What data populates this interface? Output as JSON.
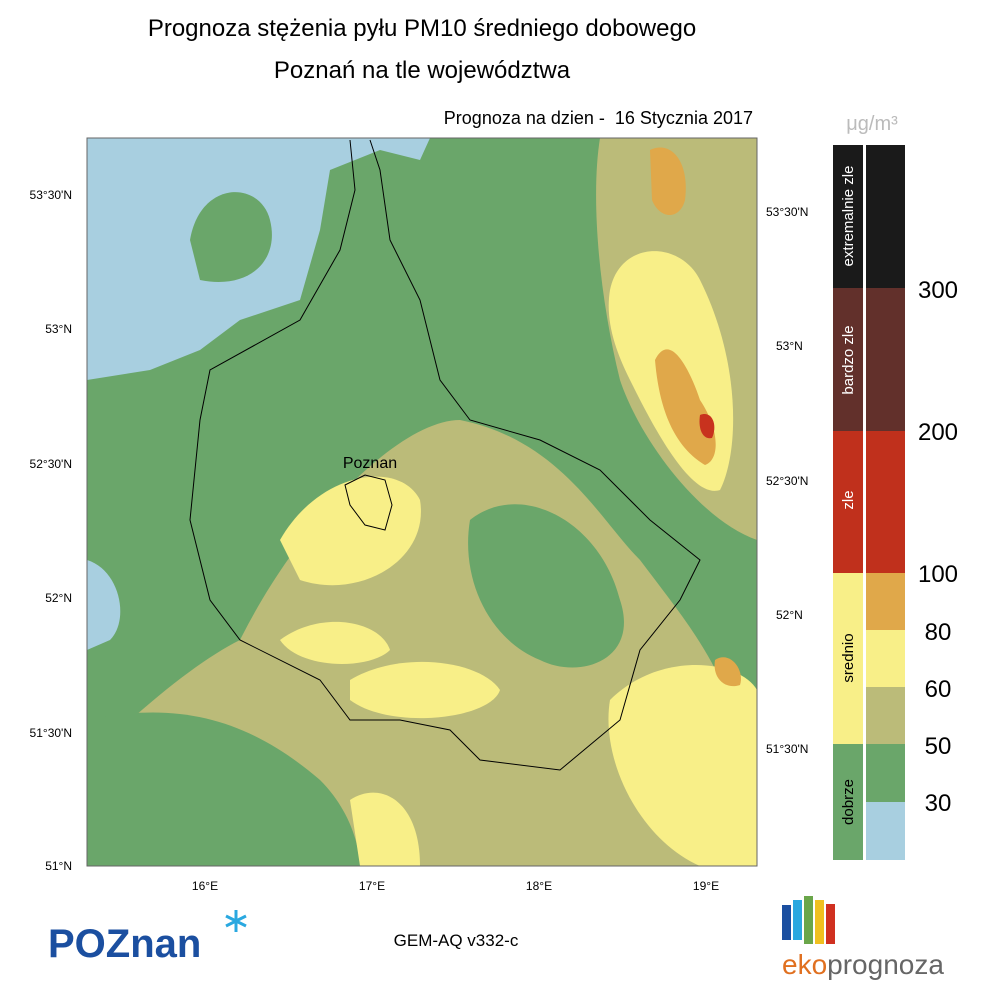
{
  "header": {
    "title": "Prognoza stężenia pyłu PM10 średniego dobowego",
    "subtitle": "Poznań na tle województwa",
    "date": "Prognoza na dzien -  16 Stycznia 2017"
  },
  "map": {
    "city": "Poznan",
    "lat_left": [
      "53°30'N",
      "53°N",
      "52°30'N",
      "52°N",
      "51°30'N",
      "51°N"
    ],
    "lat_right": [
      "53°30'N",
      "53°N",
      "52°30'N",
      "52°N",
      "51°30'N"
    ],
    "lon": [
      "16°E",
      "17°E",
      "18°E",
      "19°E"
    ]
  },
  "legend": {
    "unit": "μg/m³",
    "categories": [
      "extremalnie zle",
      "bardzo zle",
      "zle",
      "srednio",
      "dobrze"
    ],
    "thresholds": [
      300,
      200,
      100,
      80,
      60,
      50,
      30
    ]
  },
  "footer": {
    "logo": "POZnan",
    "model": "GEM-AQ v332-c",
    "brand_prefix": "eko",
    "brand": "prognoza"
  }
}
